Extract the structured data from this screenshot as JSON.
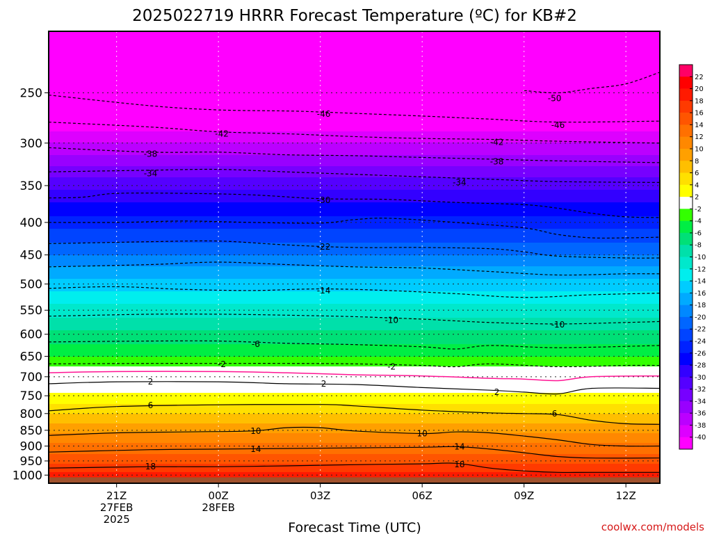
{
  "page": {
    "title": "2025022719 HRRR Forecast Temperature (ºC) for KB#2",
    "xlabel": "Forecast Time (UTC)",
    "credit": "coolwx.com/models"
  },
  "colors": {
    "ground": "#a0522d",
    "freezing_line": "#ff1493",
    "frame": "#000000",
    "credit": "#d61818"
  },
  "chart_data": {
    "type": "heatmap",
    "title": "2025022719 HRRR Forecast Temperature (ºC) for KB#2",
    "xlabel": "Forecast Time (UTC)",
    "ylabel": "",
    "x_units": "forecast hours after 2025-02-27 19Z",
    "xlim": [
      0,
      18
    ],
    "y_axis": "pressure (mb), decreasing upward",
    "ylim": [
      1030,
      200
    ],
    "x_ticks": [
      {
        "x": 2,
        "lines": [
          "21Z",
          "27FEB",
          "2025"
        ]
      },
      {
        "x": 5,
        "lines": [
          "00Z",
          "28FEB"
        ]
      },
      {
        "x": 8,
        "lines": [
          "03Z"
        ]
      },
      {
        "x": 11,
        "lines": [
          "06Z"
        ]
      },
      {
        "x": 14,
        "lines": [
          "09Z"
        ]
      },
      {
        "x": 17,
        "lines": [
          "12Z"
        ]
      }
    ],
    "y_ticks": [
      1000,
      950,
      900,
      850,
      800,
      750,
      700,
      650,
      600,
      550,
      500,
      450,
      400,
      350,
      300,
      250
    ],
    "colorbar": {
      "labels": [
        22,
        20,
        18,
        16,
        14,
        12,
        10,
        8,
        6,
        4,
        2,
        -2,
        -4,
        -6,
        -8,
        -10,
        -12,
        -14,
        -16,
        -18,
        -20,
        -22,
        -24,
        -26,
        -28,
        -30,
        -32,
        -34,
        -36,
        -38,
        -40
      ],
      "colors": [
        "#ff0066",
        "#ff0000",
        "#ff1a00",
        "#ff3a00",
        "#ff5500",
        "#ff7000",
        "#ff8800",
        "#ffa000",
        "#ffbf00",
        "#ffe000",
        "#ffff00",
        "#ffffff",
        "#33ff00",
        "#00ee44",
        "#00e077",
        "#00e0aa",
        "#00e8cc",
        "#00eeee",
        "#00ccff",
        "#00aaff",
        "#0088ff",
        "#0066ff",
        "#0044ff",
        "#0022ff",
        "#0000ff",
        "#3300ff",
        "#5500ff",
        "#7700ff",
        "#9900ff",
        "#bb00ff",
        "#dd00ff",
        "#ff00ff"
      ]
    },
    "profile": [
      {
        "p": 1000,
        "t": 19
      },
      {
        "p": 975,
        "t": 17
      },
      {
        "p": 950,
        "t": 15.5
      },
      {
        "p": 925,
        "t": 14
      },
      {
        "p": 900,
        "t": 12.5
      },
      {
        "p": 875,
        "t": 11
      },
      {
        "p": 850,
        "t": 9.5
      },
      {
        "p": 800,
        "t": 6
      },
      {
        "p": 750,
        "t": 2.5
      },
      {
        "p": 725,
        "t": 1
      },
      {
        "p": 700,
        "t": -1
      },
      {
        "p": 675,
        "t": -2
      },
      {
        "p": 650,
        "t": -4
      },
      {
        "p": 600,
        "t": -7.5
      },
      {
        "p": 550,
        "t": -11
      },
      {
        "p": 500,
        "t": -15
      },
      {
        "p": 450,
        "t": -20
      },
      {
        "p": 400,
        "t": -25
      },
      {
        "p": 350,
        "t": -30.5
      },
      {
        "p": 300,
        "t": -38
      },
      {
        "p": 250,
        "t": -46
      },
      {
        "p": 200,
        "t": -54
      }
    ],
    "contours": [
      {
        "t": -50,
        "style": "dashed",
        "points": [
          [
            14,
            248
          ],
          [
            15,
            250
          ],
          [
            16,
            246
          ],
          [
            17,
            242
          ],
          [
            18,
            232
          ]
        ]
      },
      {
        "t": -46,
        "style": "dashed",
        "points": [
          [
            0,
            252
          ],
          [
            3,
            262
          ],
          [
            5,
            266
          ],
          [
            7,
            267
          ],
          [
            8,
            268
          ],
          [
            11,
            272
          ],
          [
            13,
            275
          ],
          [
            15,
            278
          ],
          [
            18,
            277
          ]
        ]
      },
      {
        "t": -42,
        "style": "dashed",
        "points": [
          [
            0,
            278
          ],
          [
            3,
            283
          ],
          [
            5,
            288
          ],
          [
            7,
            290
          ],
          [
            9,
            293
          ],
          [
            11,
            295
          ],
          [
            13,
            296
          ],
          [
            15,
            298
          ],
          [
            18,
            300
          ]
        ]
      },
      {
        "t": -38,
        "style": "dashed",
        "points": [
          [
            0,
            305
          ],
          [
            3,
            310
          ],
          [
            5,
            310
          ],
          [
            7,
            313
          ],
          [
            9,
            314
          ],
          [
            11,
            316
          ],
          [
            13,
            318
          ],
          [
            15,
            320
          ],
          [
            18,
            322
          ]
        ]
      },
      {
        "t": -34,
        "style": "dashed",
        "points": [
          [
            0,
            333
          ],
          [
            3,
            331
          ],
          [
            5,
            330
          ],
          [
            7,
            333
          ],
          [
            9,
            336
          ],
          [
            11,
            339
          ],
          [
            13,
            342
          ],
          [
            15,
            345
          ],
          [
            18,
            346
          ]
        ]
      },
      {
        "t": -30,
        "style": "dashed",
        "points": [
          [
            0,
            366
          ],
          [
            1,
            365
          ],
          [
            2,
            360
          ],
          [
            4,
            360
          ],
          [
            6,
            362
          ],
          [
            8,
            367
          ],
          [
            10,
            368
          ],
          [
            12,
            372
          ],
          [
            14,
            375
          ],
          [
            15,
            380
          ],
          [
            16,
            387
          ],
          [
            17,
            392
          ],
          [
            18,
            393
          ]
        ]
      },
      {
        "t": -26,
        "style": "dashed",
        "points": [
          [
            0,
            400
          ],
          [
            2,
            400
          ],
          [
            4,
            398
          ],
          [
            6,
            400
          ],
          [
            8,
            401
          ],
          [
            9,
            396
          ],
          [
            10,
            394
          ],
          [
            12,
            400
          ],
          [
            14,
            408
          ],
          [
            15,
            418
          ],
          [
            16,
            423
          ],
          [
            17,
            423
          ],
          [
            18,
            422
          ]
        ]
      },
      {
        "t": -22,
        "style": "dashed",
        "points": [
          [
            0,
            432
          ],
          [
            3,
            429
          ],
          [
            5,
            428
          ],
          [
            7,
            434
          ],
          [
            9,
            438
          ],
          [
            11,
            438
          ],
          [
            13,
            440
          ],
          [
            14,
            445
          ],
          [
            15,
            452
          ],
          [
            17,
            455
          ],
          [
            18,
            455
          ]
        ]
      },
      {
        "t": -18,
        "style": "dashed",
        "points": [
          [
            0,
            470
          ],
          [
            3,
            466
          ],
          [
            5,
            462
          ],
          [
            7,
            466
          ],
          [
            9,
            470
          ],
          [
            11,
            472
          ],
          [
            13,
            478
          ],
          [
            15,
            484
          ],
          [
            17,
            482
          ],
          [
            18,
            482
          ]
        ]
      },
      {
        "t": -14,
        "style": "dashed",
        "points": [
          [
            0,
            508
          ],
          [
            2,
            505
          ],
          [
            4,
            510
          ],
          [
            6,
            512
          ],
          [
            8,
            509
          ],
          [
            10,
            512
          ],
          [
            12,
            518
          ],
          [
            14,
            525
          ],
          [
            16,
            520
          ],
          [
            18,
            517
          ]
        ]
      },
      {
        "t": -10,
        "style": "dashed",
        "points": [
          [
            0,
            562
          ],
          [
            3,
            558
          ],
          [
            5,
            558
          ],
          [
            7,
            560
          ],
          [
            9,
            563
          ],
          [
            11,
            568
          ],
          [
            13,
            575
          ],
          [
            15,
            578
          ],
          [
            17,
            575
          ],
          [
            18,
            573
          ]
        ]
      },
      {
        "t": -6,
        "style": "dashed",
        "points": [
          [
            0,
            617
          ],
          [
            3,
            615
          ],
          [
            5,
            615
          ],
          [
            7,
            620
          ],
          [
            9,
            623
          ],
          [
            11,
            628
          ],
          [
            12,
            633
          ],
          [
            13,
            625
          ],
          [
            15,
            630
          ],
          [
            18,
            625
          ]
        ]
      },
      {
        "t": -2,
        "style": "dashed",
        "points": [
          [
            0,
            668
          ],
          [
            3,
            667
          ],
          [
            5,
            667
          ],
          [
            7,
            667
          ],
          [
            9,
            668
          ],
          [
            11,
            672
          ],
          [
            12,
            675
          ],
          [
            13,
            668
          ],
          [
            15,
            675
          ],
          [
            17,
            672
          ],
          [
            18,
            672
          ]
        ]
      },
      {
        "t": 0,
        "style": "freezing",
        "points": [
          [
            0,
            690
          ],
          [
            2,
            687
          ],
          [
            5,
            687
          ],
          [
            7,
            690
          ],
          [
            9,
            695
          ],
          [
            11,
            698
          ],
          [
            13,
            704
          ],
          [
            14,
            706
          ],
          [
            15,
            710
          ],
          [
            16,
            700
          ],
          [
            18,
            698
          ]
        ]
      },
      {
        "t": 2,
        "style": "solid",
        "points": [
          [
            0,
            718
          ],
          [
            2,
            713
          ],
          [
            5,
            713
          ],
          [
            7,
            718
          ],
          [
            9,
            720
          ],
          [
            11,
            728
          ],
          [
            13,
            735
          ],
          [
            14,
            740
          ],
          [
            15,
            745
          ],
          [
            16,
            730
          ],
          [
            18,
            730
          ]
        ]
      },
      {
        "t": 6,
        "style": "solid",
        "points": [
          [
            0,
            792
          ],
          [
            2,
            780
          ],
          [
            5,
            775
          ],
          [
            8,
            774
          ],
          [
            9,
            778
          ],
          [
            11,
            790
          ],
          [
            13,
            798
          ],
          [
            14,
            800
          ],
          [
            15,
            803
          ],
          [
            16,
            820
          ],
          [
            17,
            830
          ],
          [
            18,
            832
          ]
        ]
      },
      {
        "t": 10,
        "style": "solid",
        "points": [
          [
            0,
            866
          ],
          [
            2,
            858
          ],
          [
            4,
            855
          ],
          [
            6,
            852
          ],
          [
            7,
            842
          ],
          [
            8,
            842
          ],
          [
            9,
            852
          ],
          [
            11,
            860
          ],
          [
            12,
            855
          ],
          [
            13,
            858
          ],
          [
            14,
            868
          ],
          [
            15,
            880
          ],
          [
            16,
            895
          ],
          [
            17,
            900
          ],
          [
            18,
            900
          ]
        ]
      },
      {
        "t": 14,
        "style": "solid",
        "points": [
          [
            0,
            920
          ],
          [
            3,
            912
          ],
          [
            5,
            910
          ],
          [
            7,
            908
          ],
          [
            9,
            906
          ],
          [
            11,
            904
          ],
          [
            12,
            902
          ],
          [
            13,
            910
          ],
          [
            14,
            922
          ],
          [
            15,
            935
          ],
          [
            16,
            940
          ],
          [
            18,
            940
          ]
        ]
      },
      {
        "t": 18,
        "style": "solid",
        "points": [
          [
            0,
            975
          ],
          [
            3,
            970
          ],
          [
            5,
            970
          ],
          [
            7,
            967
          ],
          [
            9,
            963
          ],
          [
            11,
            960
          ],
          [
            12,
            958
          ],
          [
            13,
            975
          ],
          [
            14,
            985
          ],
          [
            15,
            990
          ],
          [
            16,
            990
          ],
          [
            18,
            990
          ]
        ]
      }
    ],
    "contour_labels": [
      {
        "text": "-50",
        "x": 14.9,
        "p": 255
      },
      {
        "text": "-46",
        "x": 8.1,
        "p": 270
      },
      {
        "text": "-46",
        "x": 15.0,
        "p": 281
      },
      {
        "text": "-42",
        "x": 5.1,
        "p": 290
      },
      {
        "text": "-42",
        "x": 13.2,
        "p": 299
      },
      {
        "text": "-38",
        "x": 3.0,
        "p": 312
      },
      {
        "text": "-38",
        "x": 13.2,
        "p": 321
      },
      {
        "text": "-34",
        "x": 3.0,
        "p": 335
      },
      {
        "text": "-34",
        "x": 12.1,
        "p": 346
      },
      {
        "text": "-30",
        "x": 8.1,
        "p": 369
      },
      {
        "text": "-22",
        "x": 8.1,
        "p": 437
      },
      {
        "text": "-14",
        "x": 8.1,
        "p": 512
      },
      {
        "text": "-10",
        "x": 10.1,
        "p": 570
      },
      {
        "text": "-10",
        "x": 15.0,
        "p": 580
      },
      {
        "text": "-6",
        "x": 6.1,
        "p": 622
      },
      {
        "text": "-2",
        "x": 5.1,
        "p": 669
      },
      {
        "text": "-2",
        "x": 10.1,
        "p": 675
      },
      {
        "text": "2",
        "x": 3.0,
        "p": 713
      },
      {
        "text": "2",
        "x": 8.1,
        "p": 718
      },
      {
        "text": "2",
        "x": 13.2,
        "p": 740
      },
      {
        "text": "6",
        "x": 3.0,
        "p": 777
      },
      {
        "text": "6",
        "x": 14.9,
        "p": 800
      },
      {
        "text": "10",
        "x": 6.1,
        "p": 852
      },
      {
        "text": "10",
        "x": 11.0,
        "p": 860
      },
      {
        "text": "14",
        "x": 6.1,
        "p": 910
      },
      {
        "text": "14",
        "x": 12.1,
        "p": 902
      },
      {
        "text": "18",
        "x": 3.0,
        "p": 970
      },
      {
        "text": "18",
        "x": 12.1,
        "p": 962
      }
    ]
  }
}
